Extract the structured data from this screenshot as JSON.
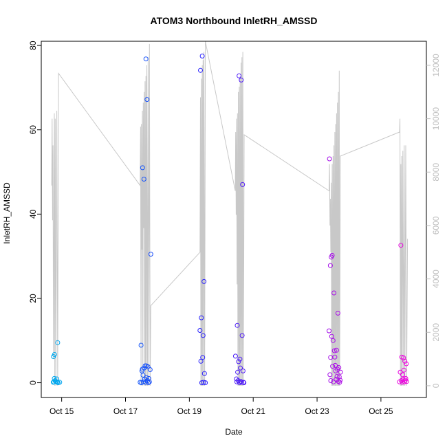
{
  "chart_data": {
    "type": "scatter",
    "title": "ATOM3 Northbound InletRH_AMSSD",
    "xlabel": "Date",
    "ylabel": "InletRH_AMSSD",
    "xlim": [
      "2016-10-14 08:40",
      "2016-10-26 10:10"
    ],
    "ylim": [
      -3.5,
      81
    ],
    "y2lim": [
      -440,
      12900
    ],
    "x_ticks": [
      {
        "date": "2016-10-15",
        "label": "Oct 15"
      },
      {
        "date": "2016-10-17",
        "label": "Oct 17"
      },
      {
        "date": "2016-10-19",
        "label": "Oct 19"
      },
      {
        "date": "2016-10-21",
        "label": "Oct 21"
      },
      {
        "date": "2016-10-23",
        "label": "Oct 23"
      },
      {
        "date": "2016-10-25",
        "label": "Oct 25"
      }
    ],
    "y_ticks": [
      0,
      20,
      40,
      60,
      80
    ],
    "y2_ticks": [
      0,
      2000,
      4000,
      6000,
      8000,
      10000,
      12000
    ],
    "grid": false,
    "colors": {
      "axis": "#000000",
      "secondary_axis": "#bebebe",
      "altitude_line": "#c8c8c8",
      "points_start": "#00aaee",
      "points_mid": "#2222ff",
      "points_end": "#ee00dd"
    },
    "series": [
      {
        "type": "scatter",
        "axis": "left",
        "points": [
          [
            "2016-10-14 17:50",
            6.2
          ],
          [
            "2016-10-14 18:40",
            6.7
          ],
          [
            "2016-10-14 17:40",
            0.1
          ],
          [
            "2016-10-14 18:10",
            0.2
          ],
          [
            "2016-10-14 18:30",
            1.0
          ],
          [
            "2016-10-14 19:00",
            0.5
          ],
          [
            "2016-10-14 19:30",
            0.3
          ],
          [
            "2016-10-14 20:00",
            0.2
          ],
          [
            "2016-10-14 20:20",
            0.9
          ],
          [
            "2016-10-14 20:50",
            0.1
          ],
          [
            "2016-10-14 21:00",
            9.5
          ],
          [
            "2016-10-14 21:20",
            0.0
          ],
          [
            "2016-10-14 22:30",
            0.1
          ],
          [
            "2016-10-17 11:00",
            0.1
          ],
          [
            "2016-10-17 11:40",
            8.9
          ],
          [
            "2016-10-17 12:00",
            0.0
          ],
          [
            "2016-10-17 12:20",
            2.8
          ],
          [
            "2016-10-17 12:40",
            3.2
          ],
          [
            "2016-10-17 12:50",
            51.0
          ],
          [
            "2016-10-17 13:10",
            1.8
          ],
          [
            "2016-10-17 13:30",
            0.2
          ],
          [
            "2016-10-17 13:50",
            48.3
          ],
          [
            "2016-10-17 14:00",
            3.5
          ],
          [
            "2016-10-17 14:20",
            0.8
          ],
          [
            "2016-10-17 14:40",
            4.0
          ],
          [
            "2016-10-17 15:00",
            0.1
          ],
          [
            "2016-10-17 15:20",
            76.8
          ],
          [
            "2016-10-17 15:40",
            4.0
          ],
          [
            "2016-10-17 15:50",
            1.2
          ],
          [
            "2016-10-17 16:10",
            67.2
          ],
          [
            "2016-10-17 16:30",
            0.5
          ],
          [
            "2016-10-17 16:50",
            3.8
          ],
          [
            "2016-10-17 17:10",
            0.0
          ],
          [
            "2016-10-17 17:30",
            1.0
          ],
          [
            "2016-10-17 18:00",
            0.2
          ],
          [
            "2016-10-17 18:30",
            3.1
          ],
          [
            "2016-10-17 19:00",
            30.5
          ],
          [
            "2016-10-19 08:00",
            12.4
          ],
          [
            "2016-10-19 08:20",
            74.1
          ],
          [
            "2016-10-19 08:40",
            5.1
          ],
          [
            "2016-10-19 09:00",
            15.4
          ],
          [
            "2016-10-19 09:20",
            0.0
          ],
          [
            "2016-10-19 09:40",
            77.5
          ],
          [
            "2016-10-19 10:00",
            6.0
          ],
          [
            "2016-10-19 10:20",
            11.2
          ],
          [
            "2016-10-19 10:40",
            0.1
          ],
          [
            "2016-10-19 11:00",
            24.0
          ],
          [
            "2016-10-19 11:20",
            2.2
          ],
          [
            "2016-10-19 12:00",
            0.0
          ],
          [
            "2016-10-20 10:40",
            6.3
          ],
          [
            "2016-10-20 11:20",
            0.9
          ],
          [
            "2016-10-20 11:40",
            0.2
          ],
          [
            "2016-10-20 12:00",
            13.6
          ],
          [
            "2016-10-20 12:20",
            2.5
          ],
          [
            "2016-10-20 12:40",
            0.5
          ],
          [
            "2016-10-20 13:00",
            5.0
          ],
          [
            "2016-10-20 13:20",
            72.8
          ],
          [
            "2016-10-20 13:40",
            0.0
          ],
          [
            "2016-10-20 14:00",
            5.6
          ],
          [
            "2016-10-20 14:20",
            3.5
          ],
          [
            "2016-10-20 14:40",
            0.3
          ],
          [
            "2016-10-20 15:00",
            71.8
          ],
          [
            "2016-10-20 15:20",
            0.1
          ],
          [
            "2016-10-20 15:40",
            11.2
          ],
          [
            "2016-10-20 16:00",
            47.0
          ],
          [
            "2016-10-20 16:20",
            2.8
          ],
          [
            "2016-10-20 16:40",
            0.1
          ],
          [
            "2016-10-20 17:00",
            0.0
          ],
          [
            "2016-10-23 09:00",
            12.3
          ],
          [
            "2016-10-23 09:20",
            53.1
          ],
          [
            "2016-10-23 09:40",
            1.9
          ],
          [
            "2016-10-23 10:00",
            27.8
          ],
          [
            "2016-10-23 10:10",
            6.0
          ],
          [
            "2016-10-23 10:20",
            0.5
          ],
          [
            "2016-10-23 10:40",
            29.8
          ],
          [
            "2016-10-23 11:00",
            11.0
          ],
          [
            "2016-10-23 11:20",
            30.2
          ],
          [
            "2016-10-23 11:40",
            3.9
          ],
          [
            "2016-10-23 12:00",
            10.0
          ],
          [
            "2016-10-23 12:20",
            0.2
          ],
          [
            "2016-10-23 12:40",
            21.3
          ],
          [
            "2016-10-23 13:00",
            7.6
          ],
          [
            "2016-10-23 13:20",
            6.1
          ],
          [
            "2016-10-23 13:40",
            4.1
          ],
          [
            "2016-10-23 14:00",
            2.8
          ],
          [
            "2016-10-23 14:20",
            0.8
          ],
          [
            "2016-10-23 14:40",
            7.7
          ],
          [
            "2016-10-23 15:00",
            1.5
          ],
          [
            "2016-10-23 15:20",
            3.2
          ],
          [
            "2016-10-23 15:40",
            16.5
          ],
          [
            "2016-10-23 16:00",
            0.3
          ],
          [
            "2016-10-23 16:20",
            3.6
          ],
          [
            "2016-10-23 16:40",
            1.4
          ],
          [
            "2016-10-23 17:00",
            0.1
          ],
          [
            "2016-10-23 17:20",
            0.6
          ],
          [
            "2016-10-23 17:40",
            2.5
          ],
          [
            "2016-10-25 14:00",
            0.2
          ],
          [
            "2016-10-25 14:30",
            2.5
          ],
          [
            "2016-10-25 15:00",
            32.6
          ],
          [
            "2016-10-25 15:20",
            0.5
          ],
          [
            "2016-10-25 15:40",
            6.1
          ],
          [
            "2016-10-25 16:00",
            0.1
          ],
          [
            "2016-10-25 16:20",
            1.9
          ],
          [
            "2016-10-25 16:40",
            0.8
          ],
          [
            "2016-10-25 17:00",
            5.9
          ],
          [
            "2016-10-25 17:20",
            3.0
          ],
          [
            "2016-10-25 17:40",
            0.2
          ],
          [
            "2016-10-25 18:00",
            5.1
          ],
          [
            "2016-10-25 18:20",
            0.6
          ],
          [
            "2016-10-25 18:40",
            1.0
          ],
          [
            "2016-10-25 19:00",
            4.5
          ],
          [
            "2016-10-25 19:20",
            0.3
          ]
        ]
      },
      {
        "type": "line",
        "axis": "right",
        "points": [
          [
            "2016-10-14 16:30",
            7500
          ],
          [
            "2016-10-14 16:50",
            10000
          ],
          [
            "2016-10-14 17:10",
            6200
          ],
          [
            "2016-10-14 17:30",
            9000
          ],
          [
            "2016-10-14 17:50",
            1000
          ],
          [
            "2016-10-14 18:10",
            5500
          ],
          [
            "2016-10-14 18:30",
            10200
          ],
          [
            "2016-10-14 18:50",
            0
          ],
          [
            "2016-10-14 19:10",
            10000
          ],
          [
            "2016-10-14 19:40",
            0
          ],
          [
            "2016-10-14 20:20",
            10300
          ],
          [
            "2016-10-14 21:00",
            0
          ],
          [
            "2016-10-14 21:40",
            11700
          ],
          [
            "2016-10-17 11:00",
            7500
          ],
          [
            "2016-10-17 11:20",
            9700
          ],
          [
            "2016-10-17 11:40",
            0
          ],
          [
            "2016-10-17 12:00",
            9800
          ],
          [
            "2016-10-17 12:20",
            5100
          ],
          [
            "2016-10-17 12:40",
            10300
          ],
          [
            "2016-10-17 13:00",
            0
          ],
          [
            "2016-10-17 13:20",
            10600
          ],
          [
            "2016-10-17 13:40",
            5900
          ],
          [
            "2016-10-17 14:00",
            11000
          ],
          [
            "2016-10-17 14:20",
            0
          ],
          [
            "2016-10-17 14:40",
            11400
          ],
          [
            "2016-10-17 15:00",
            0
          ],
          [
            "2016-10-17 15:20",
            11600
          ],
          [
            "2016-10-17 15:40",
            0
          ],
          [
            "2016-10-17 16:00",
            12000
          ],
          [
            "2016-10-17 16:30",
            0
          ],
          [
            "2016-10-17 17:00",
            12300
          ],
          [
            "2016-10-17 17:30",
            0
          ],
          [
            "2016-10-17 18:00",
            12800
          ],
          [
            "2016-10-17 18:30",
            0
          ],
          [
            "2016-10-17 19:00",
            3000
          ],
          [
            "2016-10-19 08:00",
            5000
          ],
          [
            "2016-10-19 08:20",
            10800
          ],
          [
            "2016-10-19 08:40",
            0
          ],
          [
            "2016-10-19 09:00",
            11500
          ],
          [
            "2016-10-19 09:20",
            0
          ],
          [
            "2016-10-19 09:40",
            12000
          ],
          [
            "2016-10-19 10:00",
            0
          ],
          [
            "2016-10-19 10:20",
            12200
          ],
          [
            "2016-10-19 10:40",
            0
          ],
          [
            "2016-10-19 11:00",
            12500
          ],
          [
            "2016-10-19 11:30",
            0
          ],
          [
            "2016-10-19 12:00",
            12900
          ],
          [
            "2016-10-20 10:30",
            7300
          ],
          [
            "2016-10-20 10:50",
            9500
          ],
          [
            "2016-10-20 11:10",
            6400
          ],
          [
            "2016-10-20 11:30",
            10000
          ],
          [
            "2016-10-20 11:50",
            3800
          ],
          [
            "2016-10-20 12:10",
            10200
          ],
          [
            "2016-10-20 12:30",
            0
          ],
          [
            "2016-10-20 12:50",
            11000
          ],
          [
            "2016-10-20 13:10",
            0
          ],
          [
            "2016-10-20 13:30",
            11200
          ],
          [
            "2016-10-20 13:50",
            0
          ],
          [
            "2016-10-20 14:10",
            11600
          ],
          [
            "2016-10-20 14:30",
            0
          ],
          [
            "2016-10-20 14:50",
            12100
          ],
          [
            "2016-10-20 15:10",
            0
          ],
          [
            "2016-10-20 15:30",
            12300
          ],
          [
            "2016-10-20 15:50",
            0
          ],
          [
            "2016-10-20 16:10",
            12500
          ],
          [
            "2016-10-20 16:40",
            0
          ],
          [
            "2016-10-20 17:10",
            9400
          ],
          [
            "2016-10-23 09:00",
            7300
          ],
          [
            "2016-10-23 09:20",
            8300
          ],
          [
            "2016-10-23 09:40",
            6000
          ],
          [
            "2016-10-23 10:00",
            7000
          ],
          [
            "2016-10-23 10:20",
            5000
          ],
          [
            "2016-10-23 10:40",
            7600
          ],
          [
            "2016-10-23 11:00",
            0
          ],
          [
            "2016-10-23 11:20",
            8300
          ],
          [
            "2016-10-23 11:40",
            0
          ],
          [
            "2016-10-23 12:00",
            8600
          ],
          [
            "2016-10-23 12:20",
            0
          ],
          [
            "2016-10-23 12:40",
            9000
          ],
          [
            "2016-10-23 13:00",
            0
          ],
          [
            "2016-10-23 13:20",
            9500
          ],
          [
            "2016-10-23 13:40",
            0
          ],
          [
            "2016-10-23 14:00",
            9800
          ],
          [
            "2016-10-23 14:20",
            0
          ],
          [
            "2016-10-23 14:40",
            10200
          ],
          [
            "2016-10-23 15:00",
            0
          ],
          [
            "2016-10-23 15:20",
            10600
          ],
          [
            "2016-10-23 15:40",
            0
          ],
          [
            "2016-10-23 16:00",
            11000
          ],
          [
            "2016-10-23 16:20",
            0
          ],
          [
            "2016-10-23 16:40",
            11800
          ],
          [
            "2016-10-23 17:00",
            0
          ],
          [
            "2016-10-23 17:30",
            8600
          ],
          [
            "2016-10-25 14:00",
            9500
          ],
          [
            "2016-10-25 14:20",
            10000
          ],
          [
            "2016-10-25 14:40",
            0
          ],
          [
            "2016-10-25 15:00",
            8300
          ],
          [
            "2016-10-25 15:20",
            0
          ],
          [
            "2016-10-25 15:40",
            8600
          ],
          [
            "2016-10-25 16:00",
            0
          ],
          [
            "2016-10-25 16:30",
            8800
          ],
          [
            "2016-10-25 17:00",
            0
          ],
          [
            "2016-10-25 17:30",
            9000
          ],
          [
            "2016-10-25 18:00",
            0
          ],
          [
            "2016-10-25 18:40",
            9000
          ],
          [
            "2016-10-25 19:20",
            0
          ],
          [
            "2016-10-25 20:00",
            5500
          ]
        ]
      }
    ]
  }
}
